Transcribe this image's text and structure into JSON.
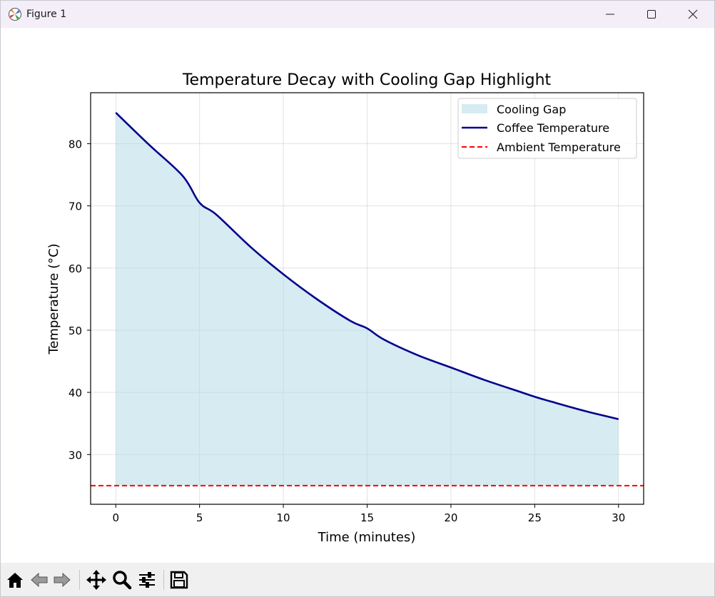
{
  "window": {
    "title": "Figure 1",
    "controls": [
      "minimize",
      "maximize",
      "close"
    ]
  },
  "toolbar": {
    "tools": [
      "home-icon",
      "back-icon",
      "forward-icon",
      "pan-icon",
      "zoom-icon",
      "configure-subplots-icon",
      "save-icon"
    ]
  },
  "colors": {
    "fill": "#add8e6",
    "line": "#00008b",
    "ambient": "#ff0000",
    "titlebar": "#f3eef8",
    "toolbar": "#f0f0f0"
  },
  "chart_data": {
    "type": "area",
    "title": "Temperature Decay with Cooling Gap Highlight",
    "xlabel": "Time (minutes)",
    "ylabel": "Temperature (°C)",
    "xlim": [
      -1.5,
      31.5
    ],
    "ylim": [
      22,
      88.2
    ],
    "xticks": [
      0,
      5,
      10,
      15,
      20,
      25,
      30
    ],
    "yticks": [
      30,
      40,
      50,
      60,
      70,
      80
    ],
    "grid": true,
    "legend_position": "top-right",
    "legend": [
      "Cooling Gap",
      "Coffee Temperature",
      "Ambient Temperature"
    ],
    "series": [
      {
        "name": "Coffee Temperature",
        "x": [
          0,
          2,
          4,
          5,
          6,
          8,
          10,
          12,
          14,
          15,
          16,
          18,
          20,
          22,
          24,
          25,
          26,
          28,
          30
        ],
        "y": [
          85,
          79.8,
          74.8,
          70.5,
          68.6,
          63.5,
          59.0,
          55.0,
          51.5,
          50.3,
          48.5,
          46.0,
          44.0,
          42.0,
          40.2,
          39.3,
          38.5,
          37.0,
          35.7
        ]
      },
      {
        "name": "Ambient Temperature",
        "y": 25
      },
      {
        "name": "Cooling Gap",
        "between": [
          "Coffee Temperature",
          "Ambient Temperature"
        ]
      }
    ]
  }
}
